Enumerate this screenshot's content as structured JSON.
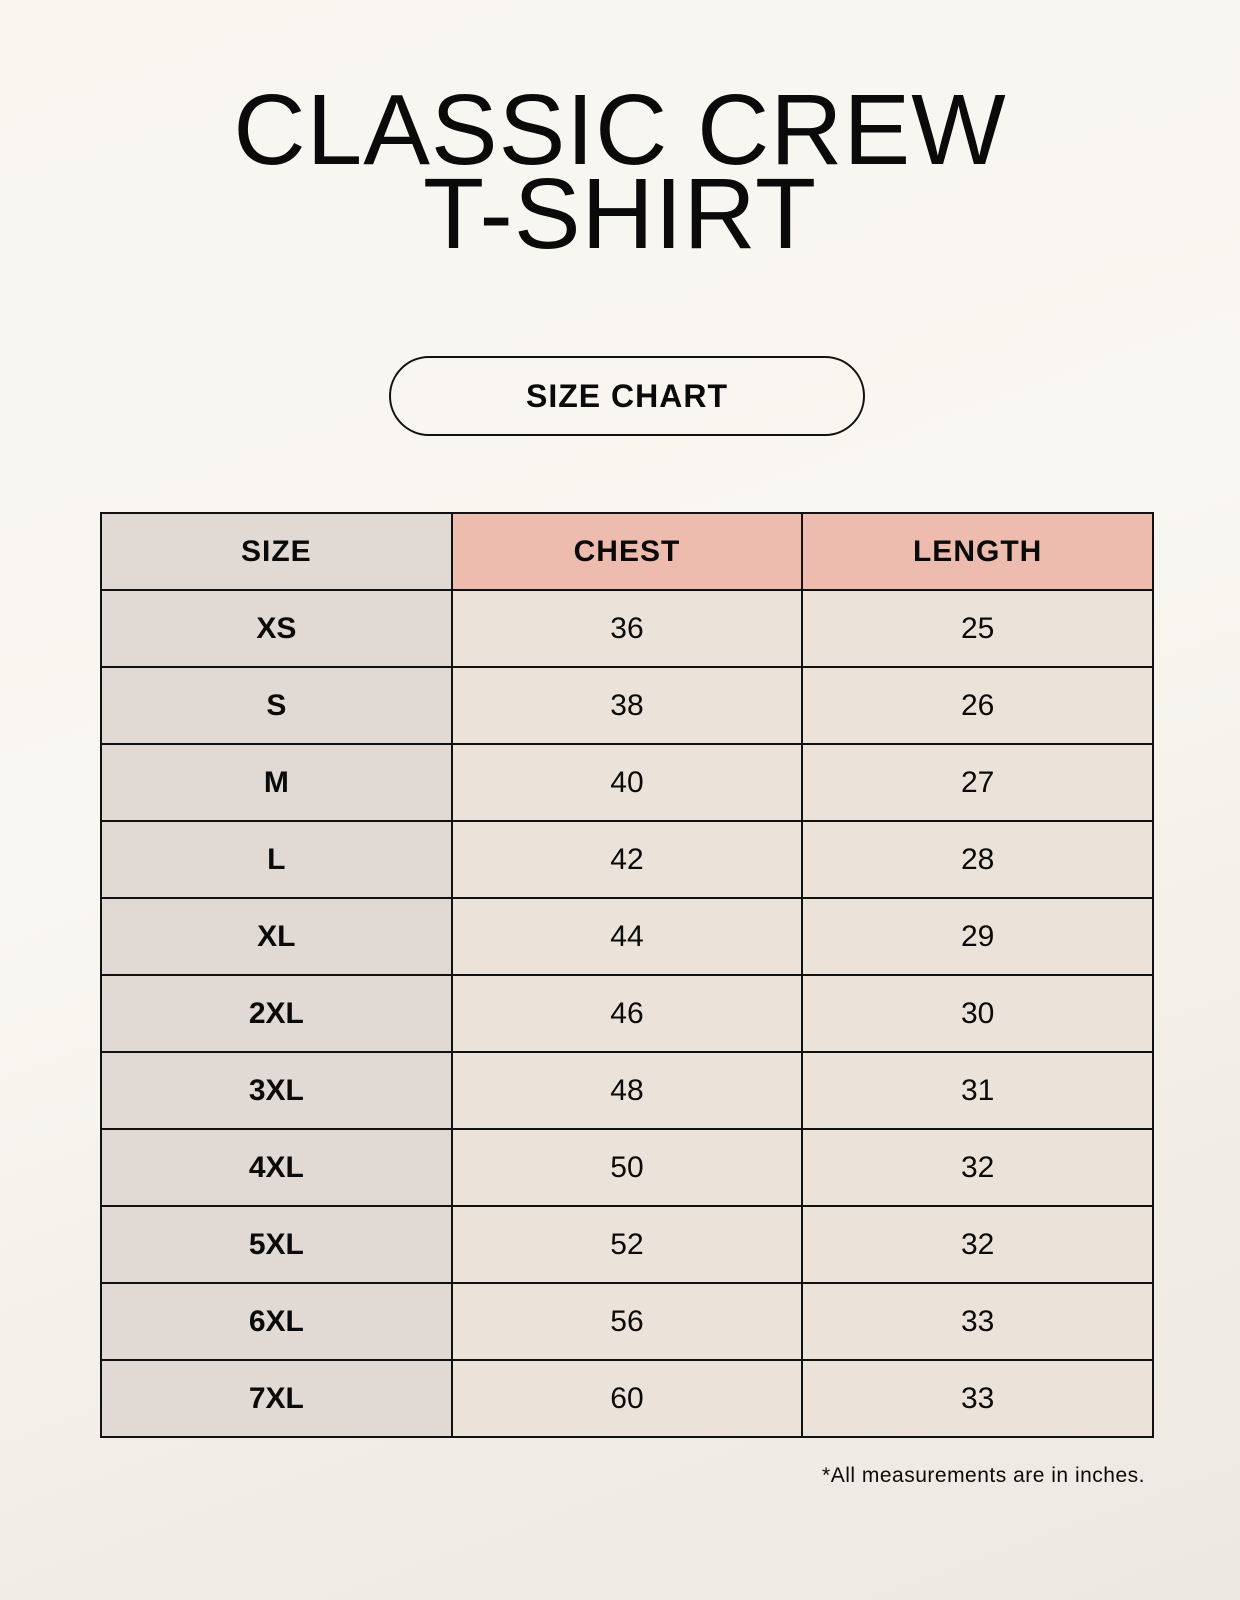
{
  "title": {
    "line1": "CLASSIC CREW",
    "line2": "T-SHIRT"
  },
  "badge": "SIZE CHART",
  "table": {
    "headers": [
      "SIZE",
      "CHEST",
      "LENGTH"
    ],
    "rows": [
      [
        "XS",
        "36",
        "25"
      ],
      [
        "S",
        "38",
        "26"
      ],
      [
        "M",
        "40",
        "27"
      ],
      [
        "L",
        "42",
        "28"
      ],
      [
        "XL",
        "44",
        "29"
      ],
      [
        "2XL",
        "46",
        "30"
      ],
      [
        "3XL",
        "48",
        "31"
      ],
      [
        "4XL",
        "50",
        "32"
      ],
      [
        "5XL",
        "52",
        "32"
      ],
      [
        "6XL",
        "56",
        "33"
      ],
      [
        "7XL",
        "60",
        "33"
      ]
    ]
  },
  "footnote": "*All measurements are in inches.",
  "colors": {
    "size_column": "#e0d9d4",
    "header_accent": "#edbcae",
    "value_cells": "#ebe3d9"
  }
}
